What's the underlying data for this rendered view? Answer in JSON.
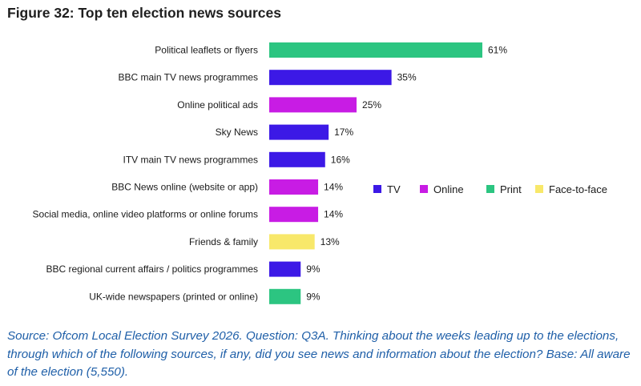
{
  "title": "Figure 32: Top ten election news sources",
  "source": "Source: Ofcom Local Election Survey 2026. Question: Q3A. Thinking about the weeks leading up to the elections, through which of the following sources, if any, did you see news and information about the election? Base: All aware of the election (5,550).",
  "colors": {
    "TV": "#3c19e6",
    "Online": "#c81ce4",
    "Print": "#2cc581",
    "Face-to-face": "#f8e86a"
  },
  "chart_data": {
    "type": "bar",
    "orientation": "horizontal",
    "title": "Figure 32: Top ten election news sources",
    "unit": "%",
    "categories": [
      "Political leaflets or flyers",
      "BBC main TV news programmes",
      "Online political ads",
      "Sky News",
      "ITV main TV news programmes",
      "BBC News online (website or app)",
      "Social media, online video platforms or online forums",
      "Friends & family",
      "BBC regional current affairs / politics programmes",
      "UK-wide newspapers (printed or online)"
    ],
    "values": [
      61,
      35,
      25,
      17,
      16,
      14,
      14,
      13,
      9,
      9
    ],
    "value_labels": [
      "61%",
      "35%",
      "25%",
      "17%",
      "16%",
      "14%",
      "14%",
      "13%",
      "9%",
      "9%"
    ],
    "groups": [
      "Print",
      "TV",
      "Online",
      "TV",
      "TV",
      "Online",
      "Online",
      "Face-to-face",
      "TV",
      "Print"
    ],
    "legend": [
      "TV",
      "Online",
      "Print",
      "Face-to-face"
    ],
    "xlim": [
      0,
      61
    ],
    "grid": false
  }
}
